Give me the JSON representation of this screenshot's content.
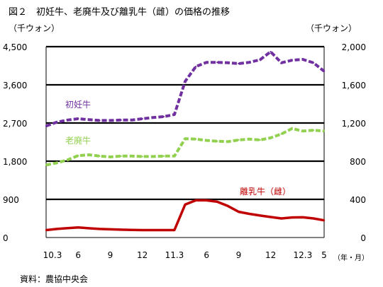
{
  "title": "図２　初妊牛、老廃牛及び離乳牛（雌）の価格の推移",
  "source": "資料：農協中央会",
  "chart_data": {
    "type": "line",
    "left_unit": "（千ウォン）",
    "right_unit": "（千ウォン）",
    "x_unit": "（年・月）",
    "x_tick_labels": [
      "10.3",
      "6",
      "9",
      "12",
      "11.3",
      "6",
      "9",
      "12",
      "12.3",
      "5"
    ],
    "y_left": {
      "ticks": [
        "0",
        "900",
        "1,800",
        "2,700",
        "3,600",
        "4,500"
      ],
      "ylim": [
        0,
        4500
      ]
    },
    "y_right": {
      "ticks": [
        "0",
        "400",
        "800",
        "1,200",
        "1,600",
        "2,000"
      ],
      "ylim": [
        0,
        2000
      ]
    },
    "grid": "horizontal",
    "x_months": [
      "2010-03",
      "2010-04",
      "2010-05",
      "2010-06",
      "2010-07",
      "2010-08",
      "2010-09",
      "2010-10",
      "2010-11",
      "2010-12",
      "2011-01",
      "2011-02",
      "2011-03",
      "2011-04",
      "2011-05",
      "2011-06",
      "2011-07",
      "2011-08",
      "2011-09",
      "2011-10",
      "2011-11",
      "2011-12",
      "2012-01",
      "2012-02",
      "2012-03",
      "2012-04",
      "2012-05"
    ],
    "series": [
      {
        "name": "初妊牛",
        "axis": "left",
        "color": "#7030a0",
        "style": "dashed",
        "values": [
          2630,
          2720,
          2770,
          2800,
          2780,
          2760,
          2760,
          2770,
          2770,
          2800,
          2830,
          2850,
          2900,
          3680,
          4030,
          4130,
          4130,
          4120,
          4100,
          4130,
          4190,
          4380,
          4120,
          4180,
          4200,
          4120,
          3920
        ]
      },
      {
        "name": "老廃牛",
        "axis": "left",
        "color": "#92d050",
        "style": "dashed",
        "values": [
          1710,
          1760,
          1830,
          1930,
          1950,
          1920,
          1900,
          1920,
          1920,
          1910,
          1910,
          1920,
          1920,
          2330,
          2320,
          2290,
          2270,
          2260,
          2300,
          2320,
          2300,
          2350,
          2440,
          2570,
          2510,
          2530,
          2510
        ]
      },
      {
        "name": "離乳牛（雌）",
        "axis": "right",
        "color": "#c00000",
        "style": "solid",
        "values": [
          78,
          90,
          98,
          105,
          97,
          90,
          86,
          82,
          79,
          78,
          78,
          78,
          78,
          345,
          390,
          390,
          375,
          330,
          270,
          248,
          230,
          215,
          200,
          210,
          212,
          200,
          180
        ]
      }
    ]
  }
}
